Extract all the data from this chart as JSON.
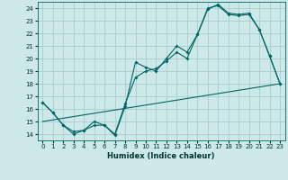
{
  "xlabel": "Humidex (Indice chaleur)",
  "bg_color": "#cce8e8",
  "grid_color": "#aacccc",
  "line_color": "#006666",
  "xlim": [
    -0.5,
    23.5
  ],
  "ylim": [
    13.5,
    24.5
  ],
  "xticks": [
    0,
    1,
    2,
    3,
    4,
    5,
    6,
    7,
    8,
    9,
    10,
    11,
    12,
    13,
    14,
    15,
    16,
    17,
    18,
    19,
    20,
    21,
    22,
    23
  ],
  "yticks": [
    14,
    15,
    16,
    17,
    18,
    19,
    20,
    21,
    22,
    23,
    24
  ],
  "line1_x": [
    0,
    1,
    2,
    3,
    4,
    5,
    6,
    7,
    8,
    9,
    10,
    11,
    12,
    13,
    14,
    15,
    16,
    17,
    18,
    19,
    20,
    21,
    22,
    23
  ],
  "line1_y": [
    16.5,
    15.7,
    14.7,
    14.0,
    14.3,
    15.0,
    14.7,
    13.9,
    16.2,
    19.7,
    19.3,
    19.0,
    20.0,
    21.0,
    20.5,
    21.9,
    23.9,
    24.3,
    23.6,
    23.5,
    23.6,
    22.3,
    20.2,
    18.0
  ],
  "line2_x": [
    0,
    1,
    2,
    3,
    4,
    5,
    6,
    7,
    8,
    9,
    10,
    11,
    12,
    13,
    14,
    15,
    16,
    17,
    18,
    19,
    20,
    21,
    22,
    23
  ],
  "line2_y": [
    16.5,
    15.7,
    14.7,
    14.2,
    14.3,
    14.7,
    14.7,
    14.0,
    16.4,
    18.5,
    19.0,
    19.2,
    19.8,
    20.5,
    20.0,
    21.9,
    24.0,
    24.2,
    23.5,
    23.4,
    23.5,
    22.3,
    20.2,
    18.0
  ],
  "line3_x": [
    0,
    23
  ],
  "line3_y": [
    15.0,
    18.0
  ],
  "figsize": [
    3.2,
    2.0
  ],
  "dpi": 100
}
